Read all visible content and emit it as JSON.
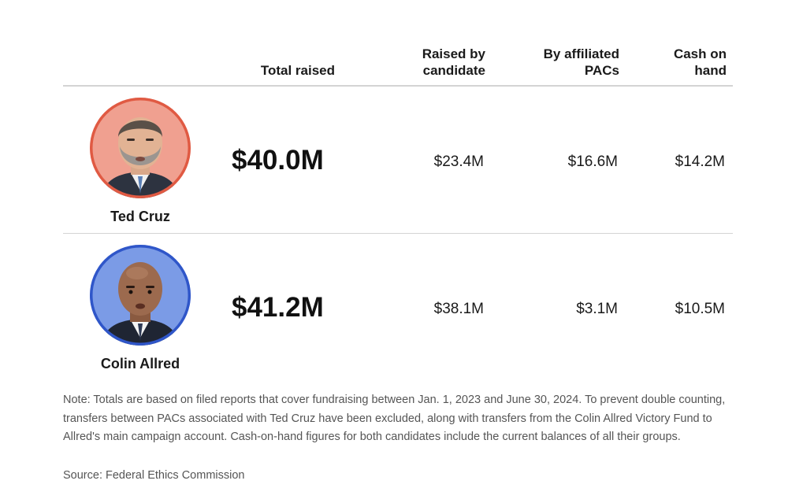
{
  "chart_data": {
    "type": "table",
    "columns": [
      "Total raised",
      "Raised by candidate",
      "By affiliated PACs",
      "Cash on hand"
    ],
    "header": {
      "total_raised": "Total raised",
      "raised_by_candidate": "Raised by\ncandidate",
      "by_affiliated_pacs": "By affiliated\nPACs",
      "cash_on_hand": "Cash on\nhand"
    },
    "rows": [
      {
        "candidate": "Ted Cruz",
        "total_raised": "$40.0M",
        "raised_by_candidate": "$23.4M",
        "by_affiliated_pacs": "$16.6M",
        "cash_on_hand": "$14.2M",
        "values_millions": [
          40.0,
          23.4,
          16.6,
          14.2
        ],
        "party_color": "#e05a43",
        "party_fill": "#f0a090"
      },
      {
        "candidate": "Colin Allred",
        "total_raised": "$41.2M",
        "raised_by_candidate": "$38.1M",
        "by_affiliated_pacs": "$3.1M",
        "cash_on_hand": "$10.5M",
        "values_millions": [
          41.2,
          38.1,
          3.1,
          10.5
        ],
        "party_color": "#2f56c9",
        "party_fill": "#7b9be6"
      }
    ],
    "note": "Note: Totals are based on filed reports that cover fundraising between Jan. 1, 2023 and June 30, 2024. To prevent double counting, transfers between PACs associated with Ted Cruz have been excluded, along with transfers from the Colin Allred Victory Fund to Allred's main campaign account. Cash-on-hand figures for both candidates include the current balances of all their groups.",
    "source": "Source: Federal Ethics Commission"
  }
}
